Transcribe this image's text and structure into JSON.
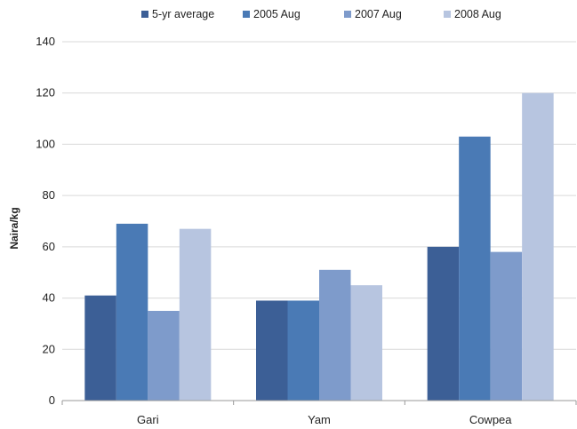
{
  "chart_data": {
    "type": "bar",
    "title": "",
    "xlabel": "",
    "ylabel": "Naira/kg",
    "categories": [
      "Gari",
      "Yam",
      "Cowpea"
    ],
    "series": [
      {
        "name": "5-yr average",
        "color": "#3C5F96",
        "values": [
          41,
          39,
          60
        ]
      },
      {
        "name": "2005 Aug",
        "color": "#4A7AB5",
        "values": [
          69,
          39,
          103
        ]
      },
      {
        "name": "2007 Aug",
        "color": "#7E9BCB",
        "values": [
          35,
          51,
          58
        ]
      },
      {
        "name": "2008 Aug",
        "color": "#B7C5E0",
        "values": [
          67,
          45,
          120
        ]
      }
    ],
    "ylim": [
      0,
      140
    ],
    "yticks": [
      0,
      20,
      40,
      60,
      80,
      100,
      120,
      140
    ],
    "grid": true,
    "legend_position": "top"
  }
}
